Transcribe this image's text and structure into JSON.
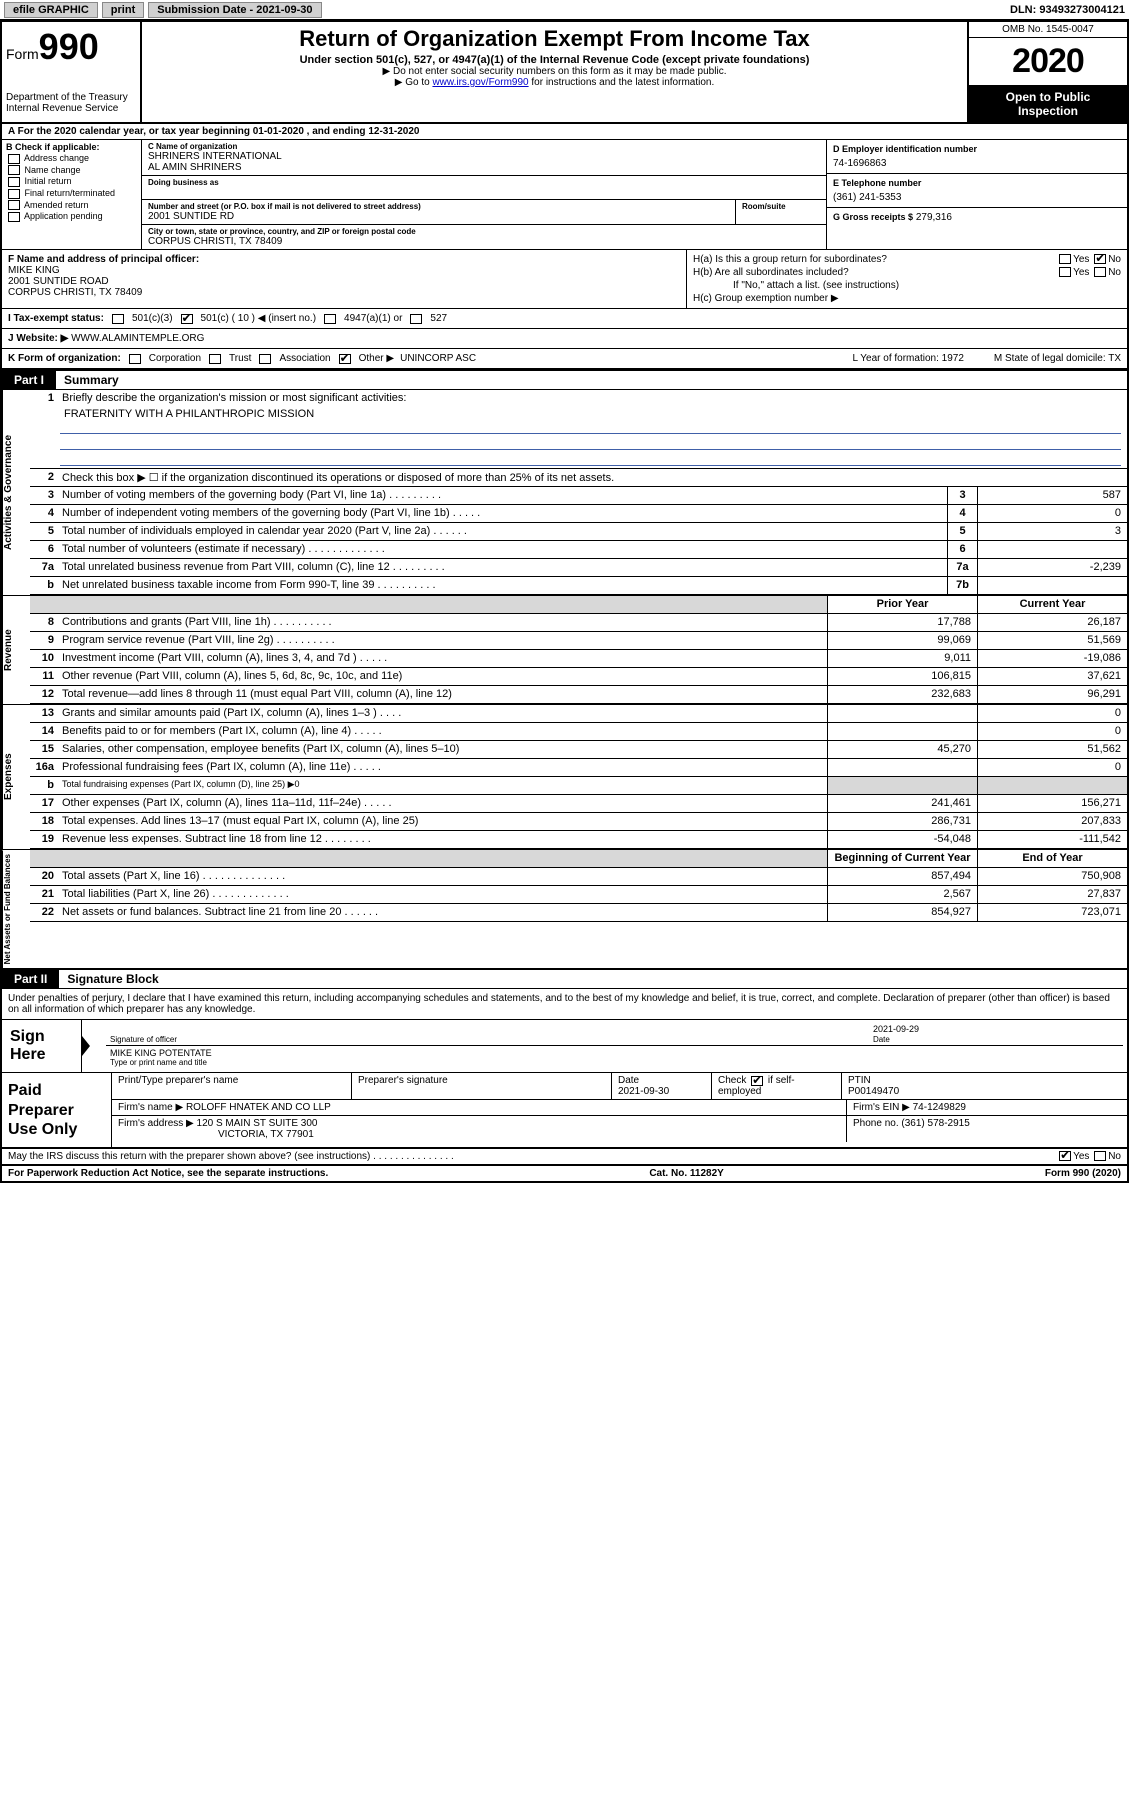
{
  "topbar": {
    "efile": "efile GRAPHIC",
    "print": "print",
    "submission": "Submission Date - 2021-09-30",
    "dln": "DLN: 93493273004121"
  },
  "header": {
    "form_prefix": "Form",
    "form_number": "990",
    "dept": "Department of the Treasury",
    "irs": "Internal Revenue Service",
    "title": "Return of Organization Exempt From Income Tax",
    "subtitle": "Under section 501(c), 527, or 4947(a)(1) of the Internal Revenue Code (except private foundations)",
    "note1": "▶ Do not enter social security numbers on this form as it may be made public.",
    "note2_pre": "▶ Go to ",
    "note2_link": "www.irs.gov/Form990",
    "note2_post": " for instructions and the latest information.",
    "omb": "OMB No. 1545-0047",
    "year": "2020",
    "inspect1": "Open to Public",
    "inspect2": "Inspection"
  },
  "rowA": "A For the 2020 calendar year, or tax year beginning 01-01-2020   , and ending 12-31-2020",
  "B": {
    "label": "B Check if applicable:",
    "addr": "Address change",
    "name": "Name change",
    "init": "Initial return",
    "final": "Final return/terminated",
    "amend": "Amended return",
    "app": "Application pending"
  },
  "C": {
    "name_label": "C Name of organization",
    "name1": "SHRINERS INTERNATIONAL",
    "name2": "AL AMIN SHRINERS",
    "dba_label": "Doing business as",
    "addr_label": "Number and street (or P.O. box if mail is not delivered to street address)",
    "room_label": "Room/suite",
    "addr": "2001 SUNTIDE RD",
    "city_label": "City or town, state or province, country, and ZIP or foreign postal code",
    "city": "CORPUS CHRISTI, TX  78409"
  },
  "D": {
    "label": "D Employer identification number",
    "ein": "74-1696863"
  },
  "E": {
    "label": "E Telephone number",
    "phone": "(361) 241-5353"
  },
  "G": {
    "label": "G Gross receipts $",
    "amount": "279,316"
  },
  "F": {
    "label": "F Name and address of principal officer:",
    "name": "MIKE KING",
    "addr1": "2001 SUNTIDE ROAD",
    "addr2": "CORPUS CHRISTI, TX  78409"
  },
  "H": {
    "a": "H(a)  Is this a group return for subordinates?",
    "b": "H(b)  Are all subordinates included?",
    "note": "If \"No,\" attach a list. (see instructions)",
    "c": "H(c)  Group exemption number ▶",
    "yes": "Yes",
    "no": "No"
  },
  "I": {
    "label": "I   Tax-exempt status:",
    "opt1": "501(c)(3)",
    "opt2": "501(c) ( 10 ) ◀ (insert no.)",
    "opt3": "4947(a)(1) or",
    "opt4": "527"
  },
  "J": {
    "label": "J   Website: ▶",
    "url": "WWW.ALAMINTEMPLE.ORG"
  },
  "K": {
    "label": "K Form of organization:",
    "corp": "Corporation",
    "trust": "Trust",
    "assoc": "Association",
    "other": "Other ▶",
    "other_val": "UNINCORP ASC",
    "L": "L Year of formation: 1972",
    "M": "M State of legal domicile: TX"
  },
  "part1": {
    "tab": "Part I",
    "title": "Summary"
  },
  "summary": {
    "vlabels": {
      "gov": "Activities & Governance",
      "rev": "Revenue",
      "exp": "Expenses",
      "net": "Net Assets or Fund Balances"
    },
    "line1": "Briefly describe the organization's mission or most significant activities:",
    "mission": "FRATERNITY WITH A PHILANTHROPIC MISSION",
    "line2": "Check this box ▶ ☐  if the organization discontinued its operations or disposed of more than 25% of its net assets.",
    "headers": {
      "prior": "Prior Year",
      "current": "Current Year",
      "begin": "Beginning of Current Year",
      "end": "End of Year"
    },
    "rows": [
      {
        "n": "3",
        "d": "Number of voting members of the governing body (Part VI, line 1a)   .    .    .    .    .    .    .    .    .",
        "box": "3",
        "v2": "587"
      },
      {
        "n": "4",
        "d": "Number of independent voting members of the governing body (Part VI, line 1b)  .    .    .    .    .",
        "box": "4",
        "v2": "0"
      },
      {
        "n": "5",
        "d": "Total number of individuals employed in calendar year 2020 (Part V, line 2a)  .    .    .    .    .    .",
        "box": "5",
        "v2": "3"
      },
      {
        "n": "6",
        "d": "Total number of volunteers (estimate if necessary)   .    .    .    .    .    .    .    .    .    .    .    .    .",
        "box": "6",
        "v2": ""
      },
      {
        "n": "7a",
        "d": "Total unrelated business revenue from Part VIII, column (C), line 12  .    .    .    .    .    .    .    .    .",
        "box": "7a",
        "v2": "-2,239"
      },
      {
        "n": "b",
        "d": "Net unrelated business taxable income from Form 990-T, line 39  .    .    .    .    .    .    .    .    .    .",
        "box": "7b",
        "v2": ""
      }
    ],
    "rev": [
      {
        "n": "8",
        "d": "Contributions and grants (Part VIII, line 1h)   .    .    .    .    .    .    .    .    .    .",
        "v1": "17,788",
        "v2": "26,187"
      },
      {
        "n": "9",
        "d": "Program service revenue (Part VIII, line 2g)   .    .    .    .    .    .    .    .    .    .",
        "v1": "99,069",
        "v2": "51,569"
      },
      {
        "n": "10",
        "d": "Investment income (Part VIII, column (A), lines 3, 4, and 7d )  .    .    .    .    .",
        "v1": "9,011",
        "v2": "-19,086"
      },
      {
        "n": "11",
        "d": "Other revenue (Part VIII, column (A), lines 5, 6d, 8c, 9c, 10c, and 11e)",
        "v1": "106,815",
        "v2": "37,621"
      },
      {
        "n": "12",
        "d": "Total revenue—add lines 8 through 11 (must equal Part VIII, column (A), line 12)",
        "v1": "232,683",
        "v2": "96,291"
      }
    ],
    "exp": [
      {
        "n": "13",
        "d": "Grants and similar amounts paid (Part IX, column (A), lines 1–3 )  .    .    .    .",
        "v1": "",
        "v2": "0"
      },
      {
        "n": "14",
        "d": "Benefits paid to or for members (Part IX, column (A), line 4)  .    .    .    .    .",
        "v1": "",
        "v2": "0"
      },
      {
        "n": "15",
        "d": "Salaries, other compensation, employee benefits (Part IX, column (A), lines 5–10)",
        "v1": "45,270",
        "v2": "51,562"
      },
      {
        "n": "16a",
        "d": "Professional fundraising fees (Part IX, column (A), line 11e)  .    .    .    .    .",
        "v1": "",
        "v2": "0"
      },
      {
        "n": "b",
        "d": "Total fundraising expenses (Part IX, column (D), line 25) ▶0",
        "grey": true
      },
      {
        "n": "17",
        "d": "Other expenses (Part IX, column (A), lines 11a–11d, 11f–24e)  .    .    .    .    .",
        "v1": "241,461",
        "v2": "156,271"
      },
      {
        "n": "18",
        "d": "Total expenses. Add lines 13–17 (must equal Part IX, column (A), line 25)",
        "v1": "286,731",
        "v2": "207,833"
      },
      {
        "n": "19",
        "d": "Revenue less expenses. Subtract line 18 from line 12  .    .    .    .    .    .    .    .",
        "v1": "-54,048",
        "v2": "-111,542"
      }
    ],
    "net": [
      {
        "n": "20",
        "d": "Total assets (Part X, line 16)   .    .    .    .    .    .    .    .    .    .    .    .    .    .",
        "v1": "857,494",
        "v2": "750,908"
      },
      {
        "n": "21",
        "d": "Total liabilities (Part X, line 26)   .    .    .    .    .    .    .    .    .    .    .    .    .",
        "v1": "2,567",
        "v2": "27,837"
      },
      {
        "n": "22",
        "d": "Net assets or fund balances. Subtract line 21 from line 20  .    .    .    .    .    .",
        "v1": "854,927",
        "v2": "723,071"
      }
    ]
  },
  "part2": {
    "tab": "Part II",
    "title": "Signature Block",
    "decl": "Under penalties of perjury, I declare that I have examined this return, including accompanying schedules and statements, and to the best of my knowledge and belief, it is true, correct, and complete. Declaration of preparer (other than officer) is based on all information of which preparer has any knowledge."
  },
  "sign": {
    "label": "Sign Here",
    "sig_of_officer": "Signature of officer",
    "sig_date": "2021-09-29",
    "date_label": "Date",
    "name": "MIKE KING  POTENTATE",
    "name_label": "Type or print name and title"
  },
  "prep": {
    "label": "Paid Preparer Use Only",
    "h1": "Print/Type preparer's name",
    "h2": "Preparer's signature",
    "h3_label": "Date",
    "h3": "2021-09-30",
    "h4_label": "Check",
    "h4_label2": "if self-employed",
    "h5_label": "PTIN",
    "h5": "P00149470",
    "firm_name_label": "Firm's name    ▶",
    "firm_name": "ROLOFF HNATEK AND CO LLP",
    "firm_ein_label": "Firm's EIN ▶",
    "firm_ein": "74-1249829",
    "firm_addr_label": "Firm's address ▶",
    "firm_addr1": "120 S MAIN ST SUITE 300",
    "firm_addr2": "VICTORIA, TX  77901",
    "phone_label": "Phone no.",
    "phone": "(361) 578-2915"
  },
  "discuss": {
    "q": "May the IRS discuss this return with the preparer shown above? (see instructions)   .    .    .    .    .    .    .    .    .    .    .    .    .    .    .",
    "yes": "Yes",
    "no": "No"
  },
  "footer": {
    "left": "For Paperwork Reduction Act Notice, see the separate instructions.",
    "mid": "Cat. No. 11282Y",
    "right": "Form 990 (2020)"
  }
}
